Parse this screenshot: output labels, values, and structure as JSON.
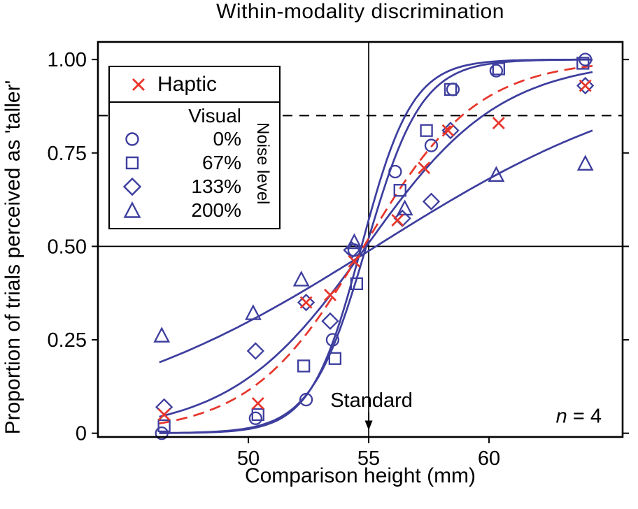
{
  "legend": {
    "haptic_label": "Haptic",
    "visual_label": "Visual",
    "noise_axis_label": "Noise level",
    "noise_levels": [
      {
        "marker": "circle",
        "label": "0%"
      },
      {
        "marker": "square",
        "label": "67%"
      },
      {
        "marker": "diamond",
        "label": "133%"
      },
      {
        "marker": "triangle",
        "label": "200%"
      }
    ]
  },
  "chart_data": {
    "type": "scatter",
    "title": "Within-modality discrimination",
    "xlabel": "Comparison height (mm)",
    "ylabel": "Proportion of trials perceived as 'taller'",
    "xlim": [
      43.75,
      65.55
    ],
    "ylim": [
      -0.01,
      1.047
    ],
    "xticks": [
      50,
      55,
      60
    ],
    "yticks": [
      0,
      0.25,
      0.5,
      0.75,
      1.0
    ],
    "ytick_labels": [
      "0",
      "0.25",
      "0.50",
      "0.75",
      "1.00"
    ],
    "grid": false,
    "legend_position": "upper left",
    "reference_lines": {
      "vertical_x": 55,
      "horizontal_y": 0.5,
      "dashed_horizontal_y": 0.85
    },
    "colors": {
      "haptic": "#e8352b",
      "visual": "#3d3e9e",
      "axis": "#000000"
    },
    "curve_x_range": [
      46.3,
      64.4
    ],
    "annotations": {
      "standard_label": "Standard",
      "standard_x": 55,
      "sample_size_label": "n = 4"
    },
    "series": [
      {
        "name": "Haptic",
        "marker": "x",
        "color": "#e8352b",
        "line": {
          "style": "dashed",
          "pse": 54.8,
          "slope": 2.35
        },
        "points": [
          [
            46.5,
            0.05
          ],
          [
            50.4,
            0.08
          ],
          [
            52.4,
            0.35
          ],
          [
            53.4,
            0.37
          ],
          [
            54.4,
            0.46
          ],
          [
            56.2,
            0.57
          ],
          [
            57.3,
            0.71
          ],
          [
            58.3,
            0.81
          ],
          [
            60.4,
            0.83
          ],
          [
            64.0,
            0.93
          ]
        ]
      },
      {
        "name": "Visual 0% noise",
        "marker": "circle",
        "color": "#3d3e9e",
        "line": {
          "style": "solid",
          "pse": 54.7,
          "slope": 1.05
        },
        "points": [
          [
            46.4,
            0.0
          ],
          [
            50.3,
            0.04
          ],
          [
            52.4,
            0.09
          ],
          [
            53.5,
            0.25
          ],
          [
            54.4,
            0.49
          ],
          [
            56.1,
            0.7
          ],
          [
            57.6,
            0.77
          ],
          [
            58.5,
            0.92
          ],
          [
            60.3,
            0.97
          ],
          [
            64.0,
            1.0
          ]
        ]
      },
      {
        "name": "Visual 67% noise",
        "marker": "square",
        "color": "#3d3e9e",
        "line": {
          "style": "solid",
          "pse": 54.9,
          "slope": 1.15
        },
        "points": [
          [
            46.5,
            0.02
          ],
          [
            50.4,
            0.05
          ],
          [
            52.3,
            0.18
          ],
          [
            53.6,
            0.2
          ],
          [
            54.5,
            0.4
          ],
          [
            56.3,
            0.65
          ],
          [
            57.4,
            0.81
          ],
          [
            58.4,
            0.92
          ],
          [
            60.4,
            0.975
          ],
          [
            63.9,
            0.99
          ]
        ]
      },
      {
        "name": "Visual 133% noise",
        "marker": "diamond",
        "color": "#3d3e9e",
        "line": {
          "style": "solid",
          "pse": 54.9,
          "slope": 2.8
        },
        "points": [
          [
            46.5,
            0.07
          ],
          [
            50.3,
            0.22
          ],
          [
            52.4,
            0.35
          ],
          [
            53.4,
            0.3
          ],
          [
            54.3,
            0.49
          ],
          [
            56.4,
            0.575
          ],
          [
            57.6,
            0.62
          ],
          [
            58.4,
            0.81
          ],
          [
            64.0,
            0.93
          ]
        ]
      },
      {
        "name": "Visual 200% noise",
        "marker": "triangle",
        "color": "#3d3e9e",
        "line": {
          "style": "solid",
          "pse": 55.3,
          "slope": 6.2
        },
        "points": [
          [
            46.4,
            0.26
          ],
          [
            50.2,
            0.32
          ],
          [
            52.2,
            0.41
          ],
          [
            54.4,
            0.51
          ],
          [
            56.5,
            0.6
          ],
          [
            60.3,
            0.69
          ],
          [
            64.0,
            0.72
          ]
        ]
      }
    ]
  }
}
